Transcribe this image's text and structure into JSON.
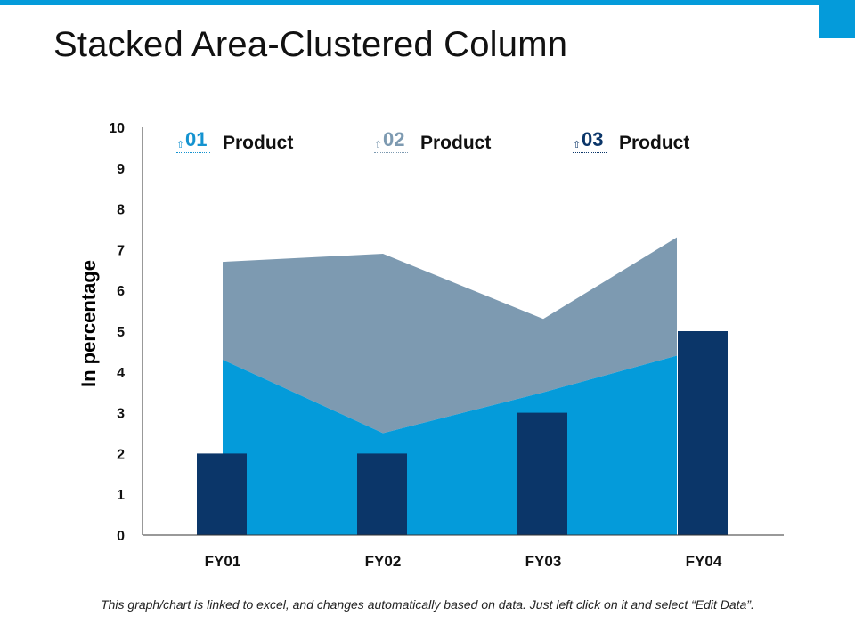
{
  "title": "Stacked Area-Clustered Column",
  "footnote": "This graph/chart is linked to excel, and changes automatically based on data. Just left click on it and select “Edit Data”.",
  "colors": {
    "accent": "#049bda",
    "series1": "#049bda",
    "series2": "#7d9ab1",
    "series3": "#0b3669"
  },
  "legend": [
    {
      "num": "01",
      "label": "Product",
      "color": "#1493d0",
      "icon": "arrow-up-icon"
    },
    {
      "num": "02",
      "label": "Product",
      "color": "#7d9ab1",
      "icon": "arrow-up-icon"
    },
    {
      "num": "03",
      "label": "Product",
      "color": "#0b3669",
      "icon": "arrow-up-icon"
    }
  ],
  "chart_data": {
    "type": "area",
    "categories": [
      "FY01",
      "FY02",
      "FY03",
      "FY04"
    ],
    "ylabel": "In percentage",
    "xlabel": "",
    "ylim": [
      0,
      10
    ],
    "yticks": [
      0,
      1,
      2,
      3,
      4,
      5,
      6,
      7,
      8,
      9,
      10
    ],
    "grid": false,
    "legend_position": "top",
    "series": [
      {
        "name": "Product 01",
        "kind": "stacked-area",
        "values": [
          4.3,
          2.5,
          3.5,
          4.4
        ]
      },
      {
        "name": "Product 02",
        "kind": "stacked-area",
        "values": [
          2.4,
          4.4,
          1.8,
          2.9
        ]
      },
      {
        "name": "Product 03",
        "kind": "column",
        "values": [
          2,
          2,
          3,
          5
        ]
      }
    ]
  }
}
